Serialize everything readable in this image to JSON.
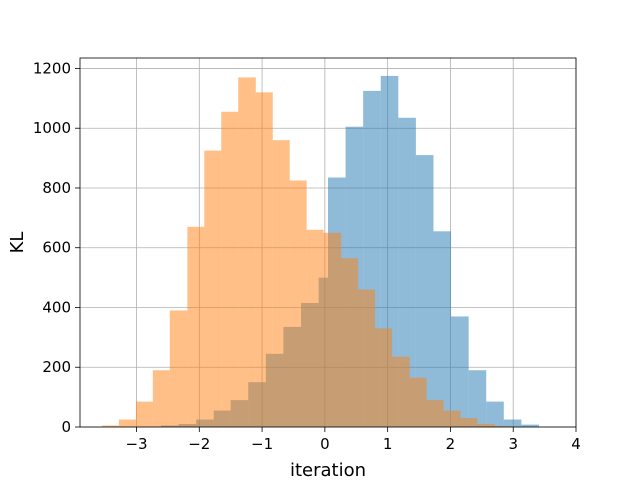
{
  "chart_data": {
    "type": "bar",
    "title": "",
    "xlabel": "iteration",
    "ylabel": "KL",
    "xlim": [
      -3.9,
      4.0
    ],
    "ylim": [
      0,
      1235
    ],
    "grid": true,
    "xticks": [
      -3,
      -2,
      -1,
      0,
      1,
      2,
      3,
      4
    ],
    "xtick_labels": [
      "−3",
      "−2",
      "−1",
      "0",
      "1",
      "2",
      "3",
      "4"
    ],
    "yticks": [
      0,
      200,
      400,
      600,
      800,
      1000,
      1200
    ],
    "ytick_labels": [
      "0",
      "200",
      "400",
      "600",
      "800",
      "1000",
      "1200"
    ],
    "series": [
      {
        "color": "#1f77b4",
        "opacity": 0.5,
        "bin_edges": [
          -2.61,
          -2.33,
          -2.05,
          -1.77,
          -1.5,
          -1.22,
          -0.94,
          -0.66,
          -0.38,
          -0.1,
          0.05,
          0.33,
          0.61,
          0.89,
          1.17,
          1.45,
          1.73,
          2.01,
          2.29,
          2.57,
          2.85,
          3.13,
          3.41
        ],
        "counts": [
          5,
          10,
          25,
          55,
          90,
          150,
          245,
          335,
          415,
          500,
          835,
          1005,
          1125,
          1175,
          1035,
          910,
          655,
          370,
          190,
          85,
          25,
          8
        ]
      },
      {
        "color": "#ff7f0e",
        "opacity": 0.5,
        "bin_edges": [
          -3.55,
          -3.28,
          -3.01,
          -2.74,
          -2.47,
          -2.19,
          -1.92,
          -1.65,
          -1.38,
          -1.1,
          -0.83,
          -0.56,
          -0.29,
          -0.02,
          0.26,
          0.53,
          0.8,
          1.07,
          1.35,
          1.62,
          1.89,
          2.16,
          2.43,
          2.71,
          2.98
        ],
        "counts": [
          5,
          25,
          85,
          190,
          390,
          670,
          925,
          1055,
          1170,
          1120,
          960,
          825,
          660,
          650,
          565,
          460,
          330,
          235,
          165,
          90,
          55,
          30,
          10,
          3
        ]
      }
    ]
  }
}
